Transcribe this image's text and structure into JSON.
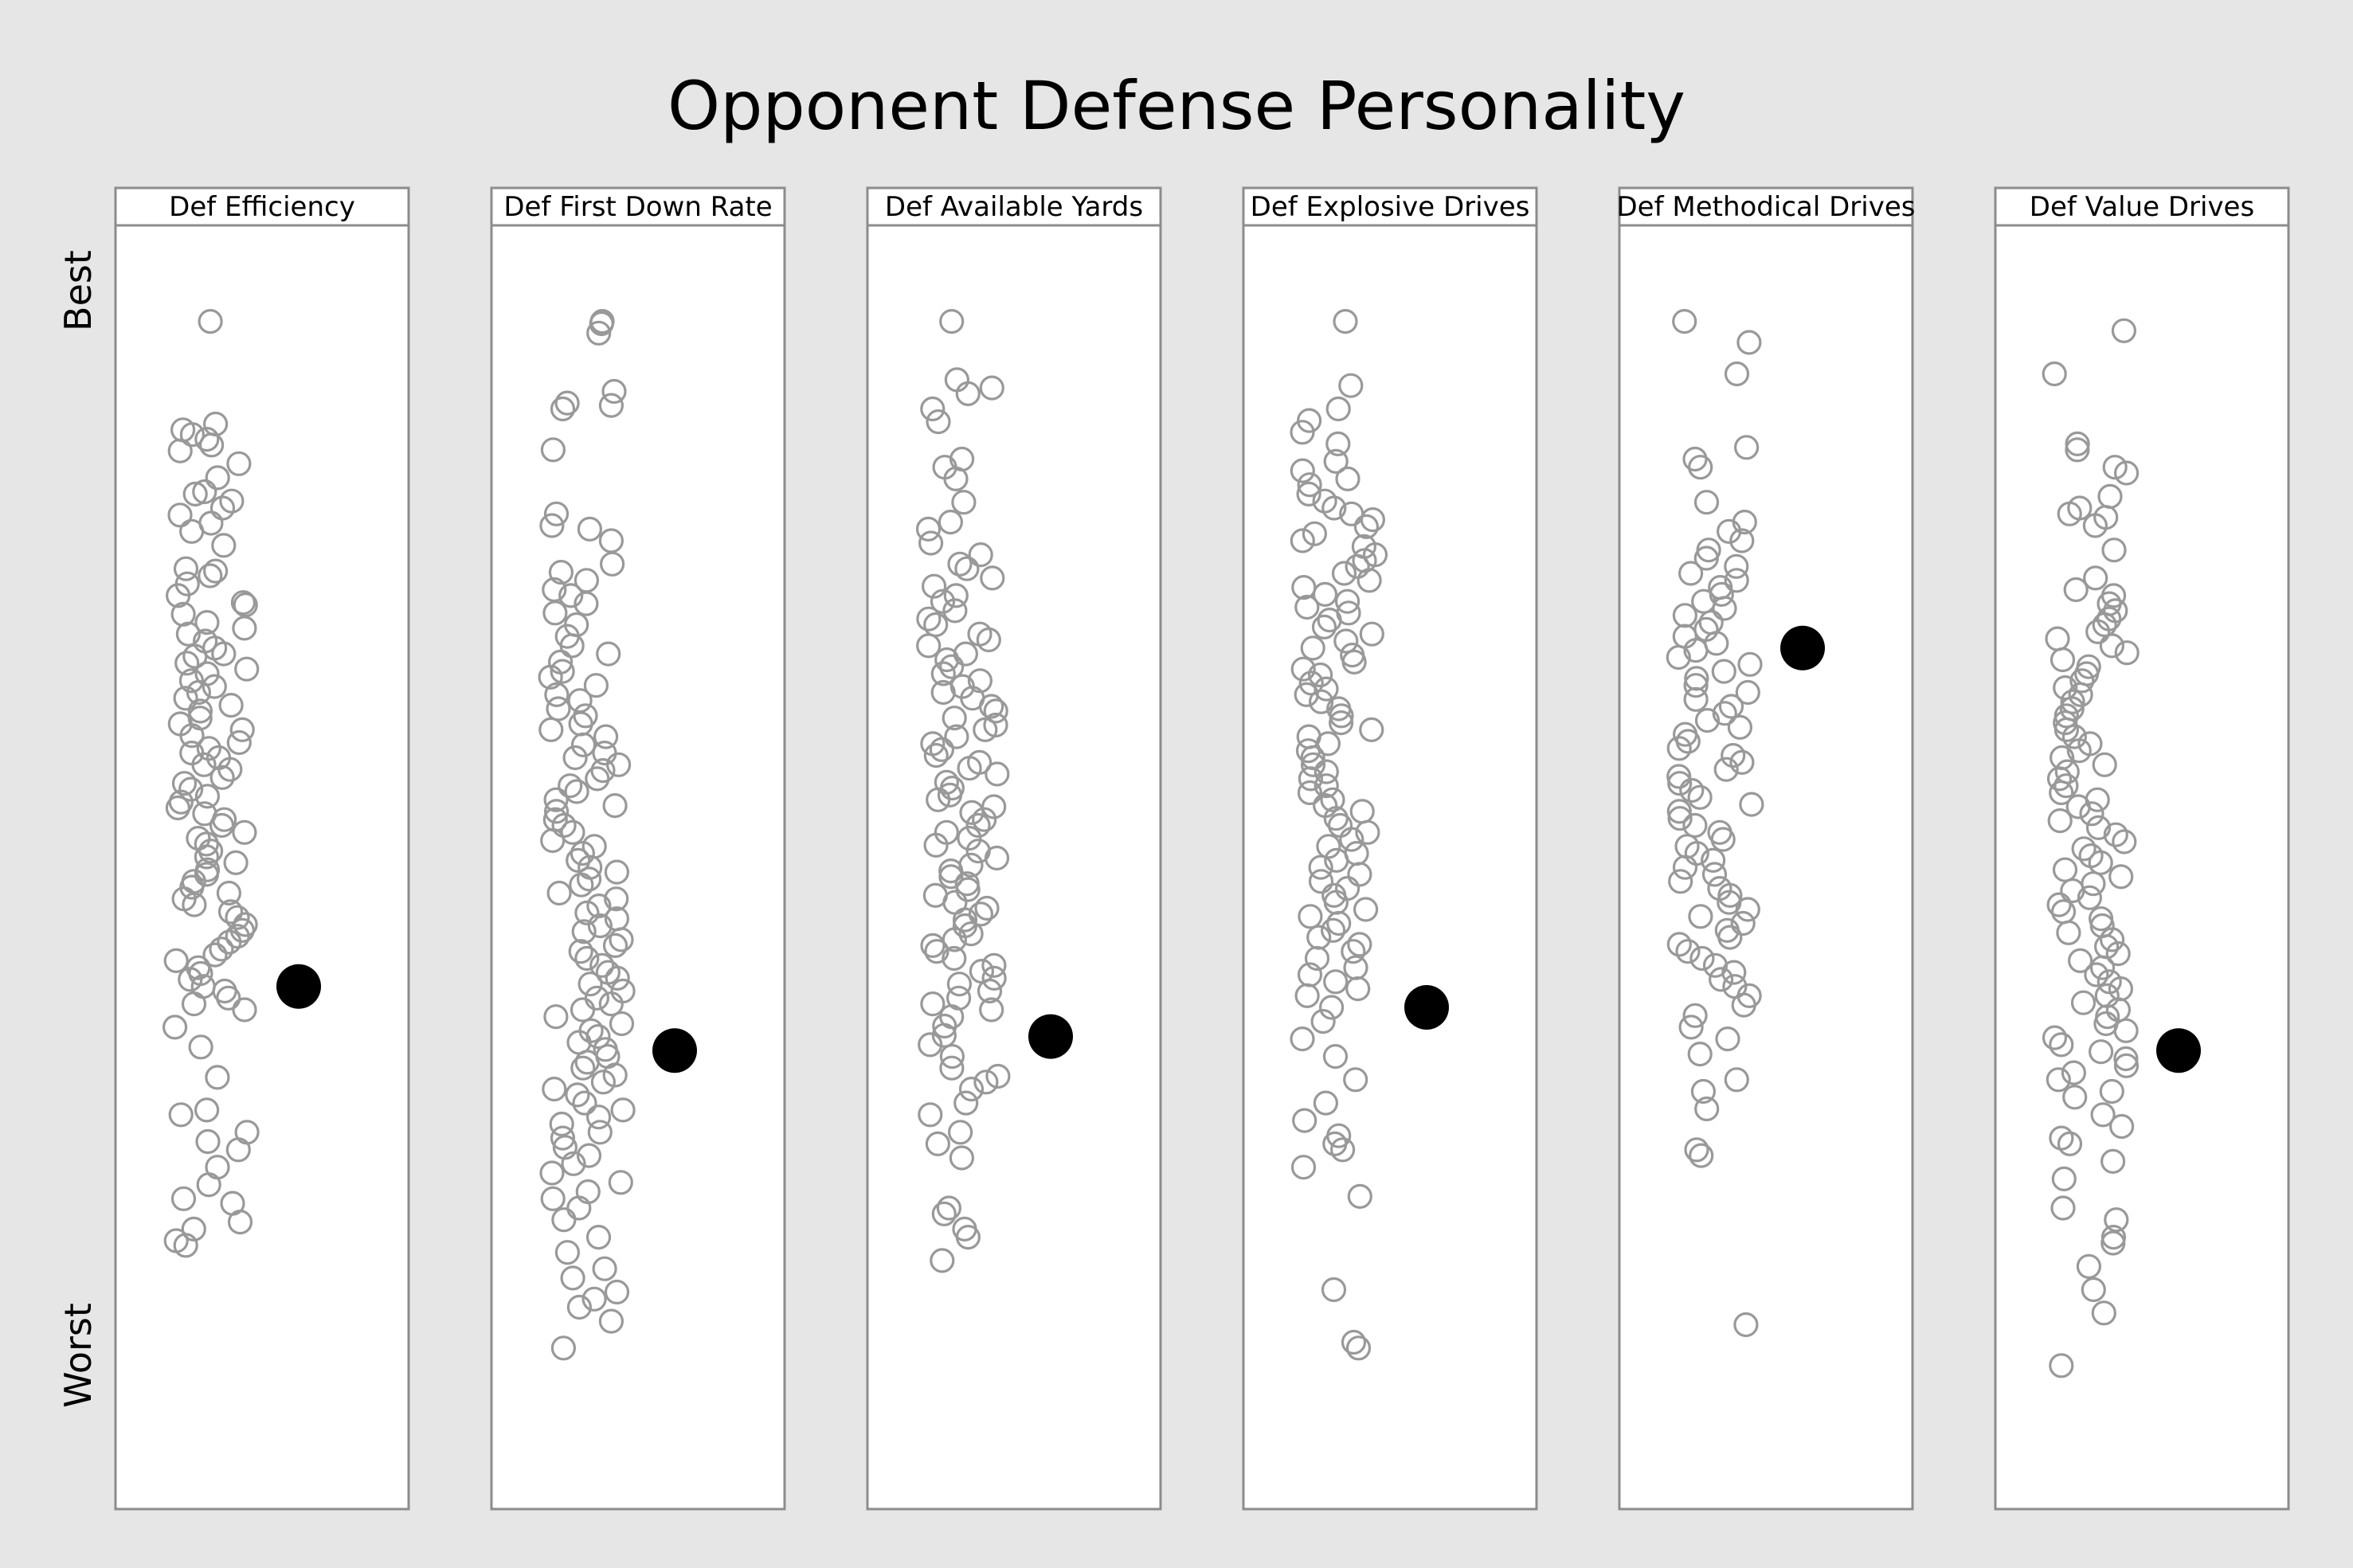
{
  "chart_data": {
    "type": "scatter",
    "title": "Opponent Defense Personality",
    "y_axis": {
      "top_label": "Best",
      "bottom_label": "Worst",
      "range": [
        0,
        1
      ]
    },
    "colors": {
      "background": "#e6e6e6",
      "panel": "#ffffff",
      "points": "#999999",
      "highlight": "#000000"
    },
    "panels": [
      {
        "name": "Def Efficiency",
        "highlight": 0.61,
        "points": [
          0.04,
          0.128,
          0.133,
          0.137,
          0.141,
          0.146,
          0.151,
          0.162,
          0.174,
          0.186,
          0.188,
          0.194,
          0.2,
          0.206,
          0.213,
          0.22,
          0.232,
          0.252,
          0.254,
          0.258,
          0.265,
          0.275,
          0.281,
          0.283,
          0.291,
          0.298,
          0.303,
          0.308,
          0.314,
          0.32,
          0.325,
          0.327,
          0.333,
          0.338,
          0.342,
          0.348,
          0.353,
          0.358,
          0.363,
          0.369,
          0.374,
          0.38,
          0.385,
          0.39,
          0.395,
          0.401,
          0.406,
          0.41,
          0.414,
          0.42,
          0.424,
          0.431,
          0.436,
          0.441,
          0.447,
          0.452,
          0.457,
          0.462,
          0.467,
          0.472,
          0.478,
          0.483,
          0.488,
          0.494,
          0.499,
          0.504,
          0.51,
          0.514,
          0.52,
          0.525,
          0.53,
          0.535,
          0.54,
          0.546,
          0.551,
          0.557,
          0.562,
          0.567,
          0.572,
          0.578,
          0.583,
          0.588,
          0.594,
          0.599,
          0.604,
          0.61,
          0.614,
          0.62,
          0.625,
          0.63,
          0.645,
          0.662,
          0.688,
          0.716,
          0.72,
          0.735,
          0.743,
          0.75,
          0.765,
          0.78,
          0.792,
          0.796,
          0.812,
          0.818,
          0.828,
          0.832
        ]
      },
      {
        "name": "Def First Down Rate",
        "highlight": 0.665,
        "points": [
          0.04,
          0.042,
          0.05,
          0.1,
          0.11,
          0.112,
          0.115,
          0.15,
          0.205,
          0.215,
          0.218,
          0.228,
          0.248,
          0.255,
          0.262,
          0.27,
          0.275,
          0.282,
          0.29,
          0.3,
          0.31,
          0.318,
          0.325,
          0.332,
          0.34,
          0.345,
          0.352,
          0.36,
          0.365,
          0.372,
          0.378,
          0.385,
          0.39,
          0.396,
          0.403,
          0.41,
          0.414,
          0.42,
          0.425,
          0.432,
          0.438,
          0.443,
          0.45,
          0.455,
          0.46,
          0.467,
          0.472,
          0.478,
          0.485,
          0.49,
          0.496,
          0.502,
          0.508,
          0.512,
          0.518,
          0.523,
          0.53,
          0.535,
          0.541,
          0.547,
          0.552,
          0.558,
          0.563,
          0.57,
          0.575,
          0.58,
          0.586,
          0.592,
          0.598,
          0.603,
          0.608,
          0.614,
          0.62,
          0.625,
          0.63,
          0.636,
          0.642,
          0.648,
          0.653,
          0.658,
          0.664,
          0.67,
          0.675,
          0.68,
          0.686,
          0.692,
          0.698,
          0.703,
          0.71,
          0.716,
          0.722,
          0.728,
          0.735,
          0.74,
          0.748,
          0.755,
          0.762,
          0.77,
          0.778,
          0.786,
          0.792,
          0.8,
          0.81,
          0.825,
          0.838,
          0.852,
          0.86,
          0.872,
          0.878,
          0.885,
          0.897,
          0.92
        ]
      },
      {
        "name": "Def Available Yards",
        "highlight": 0.653,
        "points": [
          0.04,
          0.09,
          0.097,
          0.102,
          0.115,
          0.126,
          0.158,
          0.165,
          0.175,
          0.195,
          0.212,
          0.218,
          0.23,
          0.24,
          0.248,
          0.252,
          0.26,
          0.267,
          0.275,
          0.28,
          0.288,
          0.295,
          0.3,
          0.308,
          0.313,
          0.318,
          0.325,
          0.33,
          0.336,
          0.342,
          0.348,
          0.353,
          0.358,
          0.363,
          0.37,
          0.374,
          0.38,
          0.386,
          0.39,
          0.396,
          0.402,
          0.407,
          0.412,
          0.418,
          0.423,
          0.428,
          0.435,
          0.44,
          0.446,
          0.45,
          0.456,
          0.461,
          0.467,
          0.472,
          0.478,
          0.483,
          0.489,
          0.494,
          0.5,
          0.506,
          0.511,
          0.516,
          0.522,
          0.527,
          0.532,
          0.538,
          0.543,
          0.548,
          0.553,
          0.558,
          0.565,
          0.57,
          0.575,
          0.58,
          0.586,
          0.592,
          0.597,
          0.603,
          0.608,
          0.614,
          0.62,
          0.625,
          0.63,
          0.636,
          0.644,
          0.652,
          0.66,
          0.67,
          0.68,
          0.687,
          0.692,
          0.698,
          0.71,
          0.72,
          0.735,
          0.745,
          0.757,
          0.8,
          0.805,
          0.818,
          0.825,
          0.845
        ]
      },
      {
        "name": "Def Explosive Drives",
        "highlight": 0.628,
        "points": [
          0.04,
          0.095,
          0.115,
          0.125,
          0.135,
          0.145,
          0.16,
          0.168,
          0.175,
          0.18,
          0.188,
          0.194,
          0.2,
          0.205,
          0.21,
          0.216,
          0.222,
          0.228,
          0.233,
          0.24,
          0.245,
          0.25,
          0.256,
          0.262,
          0.268,
          0.274,
          0.28,
          0.285,
          0.29,
          0.296,
          0.302,
          0.308,
          0.314,
          0.32,
          0.326,
          0.332,
          0.338,
          0.343,
          0.35,
          0.355,
          0.36,
          0.366,
          0.372,
          0.378,
          0.384,
          0.39,
          0.396,
          0.402,
          0.408,
          0.414,
          0.42,
          0.426,
          0.432,
          0.438,
          0.444,
          0.45,
          0.455,
          0.46,
          0.466,
          0.472,
          0.478,
          0.484,
          0.49,
          0.496,
          0.502,
          0.508,
          0.514,
          0.52,
          0.526,
          0.532,
          0.538,
          0.544,
          0.55,
          0.556,
          0.562,
          0.568,
          0.574,
          0.58,
          0.586,
          0.594,
          0.6,
          0.606,
          0.612,
          0.618,
          0.628,
          0.64,
          0.655,
          0.67,
          0.69,
          0.71,
          0.725,
          0.738,
          0.745,
          0.75,
          0.765,
          0.79,
          0.87,
          0.915,
          0.92
        ]
      },
      {
        "name": "Def Methodical Drives",
        "highlight": 0.32,
        "points": [
          0.04,
          0.058,
          0.085,
          0.148,
          0.158,
          0.165,
          0.195,
          0.212,
          0.22,
          0.228,
          0.236,
          0.243,
          0.25,
          0.256,
          0.262,
          0.268,
          0.274,
          0.28,
          0.286,
          0.292,
          0.298,
          0.304,
          0.31,
          0.316,
          0.322,
          0.328,
          0.334,
          0.34,
          0.346,
          0.352,
          0.358,
          0.364,
          0.37,
          0.376,
          0.382,
          0.388,
          0.394,
          0.4,
          0.406,
          0.412,
          0.418,
          0.424,
          0.43,
          0.436,
          0.442,
          0.448,
          0.454,
          0.46,
          0.466,
          0.472,
          0.478,
          0.484,
          0.49,
          0.496,
          0.502,
          0.508,
          0.514,
          0.52,
          0.526,
          0.532,
          0.538,
          0.544,
          0.55,
          0.556,
          0.562,
          0.568,
          0.574,
          0.58,
          0.586,
          0.592,
          0.598,
          0.604,
          0.61,
          0.618,
          0.626,
          0.635,
          0.645,
          0.655,
          0.668,
          0.69,
          0.7,
          0.715,
          0.75,
          0.755,
          0.9
        ]
      },
      {
        "name": "Def Value Drives",
        "highlight": 0.665,
        "points": [
          0.048,
          0.085,
          0.145,
          0.15,
          0.165,
          0.17,
          0.19,
          0.205,
          0.2,
          0.208,
          0.215,
          0.236,
          0.26,
          0.27,
          0.275,
          0.282,
          0.288,
          0.295,
          0.3,
          0.306,
          0.312,
          0.318,
          0.324,
          0.33,
          0.336,
          0.342,
          0.348,
          0.354,
          0.36,
          0.366,
          0.372,
          0.378,
          0.384,
          0.39,
          0.396,
          0.402,
          0.408,
          0.414,
          0.42,
          0.426,
          0.432,
          0.438,
          0.444,
          0.45,
          0.456,
          0.462,
          0.468,
          0.474,
          0.48,
          0.486,
          0.492,
          0.498,
          0.504,
          0.51,
          0.516,
          0.522,
          0.528,
          0.534,
          0.54,
          0.546,
          0.552,
          0.558,
          0.564,
          0.57,
          0.576,
          0.582,
          0.588,
          0.594,
          0.6,
          0.606,
          0.612,
          0.618,
          0.624,
          0.63,
          0.636,
          0.642,
          0.648,
          0.654,
          0.66,
          0.666,
          0.672,
          0.678,
          0.684,
          0.69,
          0.7,
          0.705,
          0.72,
          0.73,
          0.74,
          0.745,
          0.76,
          0.775,
          0.8,
          0.81,
          0.825,
          0.83,
          0.85,
          0.87,
          0.89,
          0.935
        ]
      }
    ]
  }
}
